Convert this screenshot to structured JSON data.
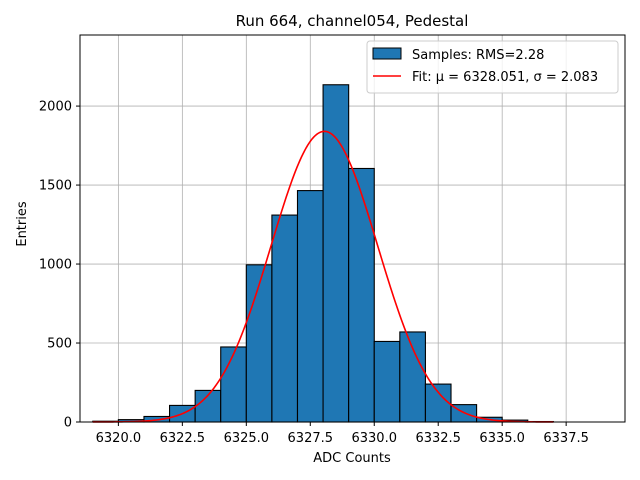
{
  "chart_data": {
    "type": "bar",
    "title": "Run 664, channel054, Pedestal",
    "xlabel": "ADC Counts",
    "ylabel": "Entries",
    "xlim": [
      6318.5,
      6339.8
    ],
    "ylim": [
      0,
      2450
    ],
    "grid": true,
    "legend_position": "top-right",
    "x_ticks": [
      6320.0,
      6322.5,
      6325.0,
      6327.5,
      6330.0,
      6332.5,
      6335.0,
      6337.5
    ],
    "x_tick_labels": [
      "6320.0",
      "6322.5",
      "6325.0",
      "6327.5",
      "6330.0",
      "6332.5",
      "6335.0",
      "6337.5"
    ],
    "y_ticks": [
      0,
      500,
      1000,
      1500,
      2000
    ],
    "y_tick_labels": [
      "0",
      "500",
      "1000",
      "1500",
      "2000"
    ],
    "series": [
      {
        "name": "Samples: RMS=2.28",
        "kind": "histogram",
        "color": "#1f77b4",
        "edge_color": "#000000",
        "bins": [
          {
            "x0": 6319,
            "x1": 6320,
            "value": 5
          },
          {
            "x0": 6320,
            "x1": 6321,
            "value": 15
          },
          {
            "x0": 6321,
            "x1": 6322,
            "value": 35
          },
          {
            "x0": 6322,
            "x1": 6323,
            "value": 105
          },
          {
            "x0": 6323,
            "x1": 6324,
            "value": 200
          },
          {
            "x0": 6324,
            "x1": 6325,
            "value": 475
          },
          {
            "x0": 6325,
            "x1": 6326,
            "value": 995
          },
          {
            "x0": 6326,
            "x1": 6327,
            "value": 1310
          },
          {
            "x0": 6327,
            "x1": 6328,
            "value": 1465
          },
          {
            "x0": 6328,
            "x1": 6329,
            "value": 2135
          },
          {
            "x0": 6329,
            "x1": 6330,
            "value": 1605
          },
          {
            "x0": 6330,
            "x1": 6331,
            "value": 510
          },
          {
            "x0": 6331,
            "x1": 6332,
            "value": 570
          },
          {
            "x0": 6332,
            "x1": 6333,
            "value": 240
          },
          {
            "x0": 6333,
            "x1": 6334,
            "value": 110
          },
          {
            "x0": 6334,
            "x1": 6335,
            "value": 30
          },
          {
            "x0": 6335,
            "x1": 6336,
            "value": 12
          },
          {
            "x0": 6336,
            "x1": 6337,
            "value": 3
          }
        ]
      },
      {
        "name": "Fit: μ = 6328.051, σ = 2.083",
        "kind": "gaussian",
        "color": "#ff0000",
        "mu": 6328.051,
        "sigma": 2.083,
        "amplitude": 1840,
        "x_range": [
          6319,
          6337
        ]
      }
    ]
  }
}
